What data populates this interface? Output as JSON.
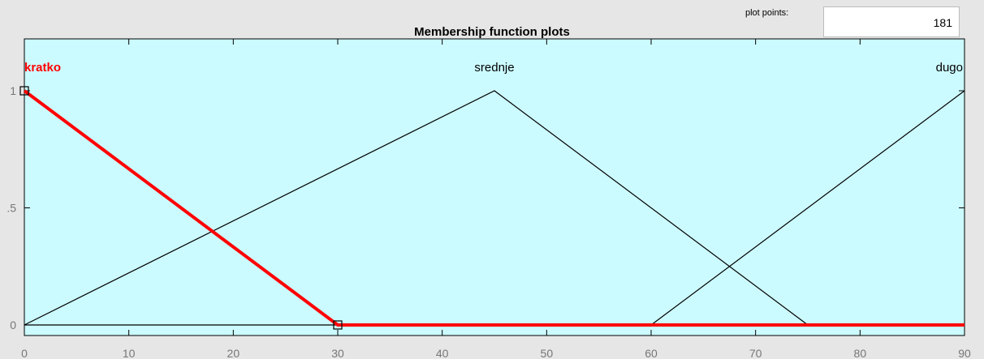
{
  "window": {
    "title": "Membership function plots"
  },
  "plot_points": {
    "label": "plot points:",
    "value": "181"
  },
  "colors": {
    "axes_background": "#ccfbff",
    "selected_mf": "#ff0000",
    "mf_line": "#000000"
  },
  "chart_data": {
    "type": "line",
    "title": "Membership function plots",
    "xlim": [
      0,
      90
    ],
    "ylim": [
      0,
      1
    ],
    "x_ticks": [
      0,
      10,
      20,
      30,
      40,
      50,
      60,
      70,
      80,
      90
    ],
    "y_ticks": [
      {
        "value": 0,
        "label": "0"
      },
      {
        "value": 0.5,
        "label": ".5"
      },
      {
        "value": 1,
        "label": "1"
      }
    ],
    "selected": "kratko",
    "series": [
      {
        "name": "kratko",
        "x": [
          0,
          0,
          30,
          90
        ],
        "y": [
          1,
          1,
          0,
          0
        ],
        "label_x": 0,
        "label_align": "start"
      },
      {
        "name": "srednje",
        "x": [
          0,
          45,
          75,
          90
        ],
        "y": [
          0,
          1,
          0,
          0
        ],
        "label_x": 45,
        "label_align": "middle"
      },
      {
        "name": "dugo",
        "x": [
          0,
          60,
          90,
          90
        ],
        "y": [
          0,
          0,
          1,
          1
        ],
        "label_x": 90,
        "label_align": "end"
      }
    ]
  }
}
